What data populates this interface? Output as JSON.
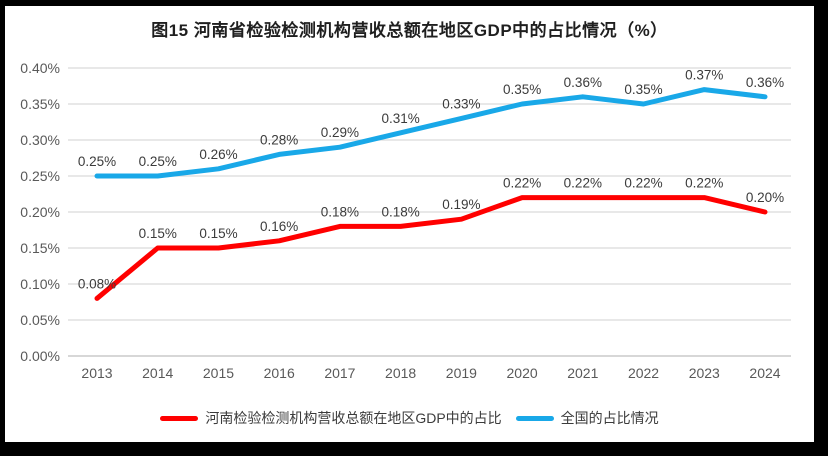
{
  "chart_data": {
    "type": "line",
    "title": "图15  河南省检验检测机构营收总额在地区GDP中的占比情况（%）",
    "xlabel": "",
    "ylabel": "",
    "categories": [
      "2013",
      "2014",
      "2015",
      "2016",
      "2017",
      "2018",
      "2019",
      "2020",
      "2021",
      "2022",
      "2023",
      "2024"
    ],
    "series": [
      {
        "name": "河南检验检测机构营收总额在地区GDP中的占比",
        "color": "#FF0000",
        "values": [
          0.08,
          0.15,
          0.15,
          0.16,
          0.18,
          0.18,
          0.19,
          0.22,
          0.22,
          0.22,
          0.22,
          0.2
        ],
        "labels": [
          "0.08%",
          "0.15%",
          "0.15%",
          "0.16%",
          "0.18%",
          "0.18%",
          "0.19%",
          "0.22%",
          "0.22%",
          "0.22%",
          "0.22%",
          "0.20%"
        ]
      },
      {
        "name": "全国的占比情况",
        "color": "#19A8E8",
        "values": [
          0.25,
          0.25,
          0.26,
          0.28,
          0.29,
          0.31,
          0.33,
          0.35,
          0.36,
          0.35,
          0.37,
          0.36
        ],
        "labels": [
          "0.25%",
          "0.25%",
          "0.26%",
          "0.28%",
          "0.29%",
          "0.31%",
          "0.33%",
          "0.35%",
          "0.36%",
          "0.35%",
          "0.37%",
          "0.36%"
        ]
      }
    ],
    "ylim": [
      0,
      0.4
    ],
    "ytick_step": 0.05,
    "ytick_labels": [
      "0.00%",
      "0.05%",
      "0.10%",
      "0.15%",
      "0.20%",
      "0.25%",
      "0.30%",
      "0.35%",
      "0.40%"
    ],
    "unit": "%",
    "grid": true,
    "legend_position": "bottom",
    "colors": {
      "gridline": "#D9D9D9",
      "axis_line": "#BFBFBF",
      "tick_label": "#595959",
      "data_label": "#3B3B3B"
    }
  }
}
